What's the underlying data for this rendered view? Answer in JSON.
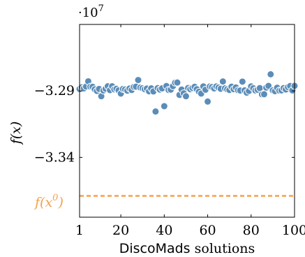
{
  "chart_data": {
    "type": "scatter",
    "title": "",
    "xlabel_sans": "DiscoMads",
    "xlabel_rest": "solutions",
    "ylabel": "f(x)",
    "y_scale_label_base": "·10",
    "y_scale_label_exp": "7",
    "xlim": [
      1,
      100
    ],
    "ylim": [
      -3.385,
      -3.24
    ],
    "xticks": [
      1,
      20,
      40,
      60,
      80,
      100
    ],
    "xtick_labels": [
      "1",
      "20",
      "40",
      "60",
      "80",
      "100"
    ],
    "yticks": [
      -3.29,
      -3.34
    ],
    "ytick_labels": [
      "−3.29",
      "−3.34"
    ],
    "grid": false,
    "series": [
      {
        "marker_color": "#5b8db8",
        "x": [
          1,
          2,
          3,
          4,
          5,
          6,
          7,
          8,
          9,
          10,
          11,
          12,
          13,
          14,
          15,
          16,
          17,
          18,
          19,
          20,
          21,
          22,
          23,
          24,
          25,
          26,
          27,
          28,
          29,
          30,
          31,
          32,
          33,
          34,
          35,
          36,
          37,
          38,
          39,
          40,
          41,
          42,
          43,
          44,
          45,
          46,
          47,
          48,
          49,
          50,
          51,
          52,
          53,
          54,
          55,
          56,
          57,
          58,
          59,
          60,
          61,
          62,
          63,
          64,
          65,
          66,
          67,
          68,
          69,
          70,
          71,
          72,
          73,
          74,
          75,
          76,
          77,
          78,
          79,
          80,
          81,
          82,
          83,
          84,
          85,
          86,
          87,
          88,
          89,
          90,
          91,
          92,
          93,
          94,
          95,
          96,
          97,
          98,
          99,
          100
        ],
        "y": [
          -3.2885,
          -3.2873,
          -3.2881,
          -3.2867,
          -3.2828,
          -3.2868,
          -3.2869,
          -3.2888,
          -3.29,
          -3.2885,
          -3.294,
          -3.2897,
          -3.2884,
          -3.2865,
          -3.2894,
          -3.2865,
          -3.2888,
          -3.2884,
          -3.2896,
          -3.292,
          -3.2885,
          -3.2889,
          -3.2898,
          -3.2882,
          -3.2893,
          -3.287,
          -3.2868,
          -3.2818,
          -3.2875,
          -3.288,
          -3.2887,
          -3.2882,
          -3.2903,
          -3.2881,
          -3.2904,
          -3.3055,
          -3.2879,
          -3.289,
          -3.2881,
          -3.3015,
          -3.2863,
          -3.2893,
          -3.289,
          -3.2864,
          -3.2838,
          -3.2837,
          -3.293,
          -3.289,
          -3.2918,
          -3.294,
          -3.2878,
          -3.2887,
          -3.2878,
          -3.2869,
          -3.2887,
          -3.2906,
          -3.292,
          -3.2866,
          -3.2891,
          -3.298,
          -3.2867,
          -3.2871,
          -3.2881,
          -3.2866,
          -3.2875,
          -3.2884,
          -3.2829,
          -3.2881,
          -3.2888,
          -3.2893,
          -3.2868,
          -3.2887,
          -3.2874,
          -3.2895,
          -3.2897,
          -3.283,
          -3.2896,
          -3.2913,
          -3.29,
          -3.2866,
          -3.288,
          -3.2897,
          -3.2891,
          -3.2879,
          -3.2926,
          -3.2925,
          -3.2875,
          -3.2862,
          -3.2775,
          -3.2896,
          -3.2902,
          -3.2876,
          -3.2898,
          -3.2896,
          -3.2879,
          -3.2889,
          -3.2871,
          -3.2863,
          -3.2896,
          -3.2862
        ]
      }
    ],
    "reference_line": {
      "label_base": "f(x",
      "label_sup": "0",
      "label_close": ")",
      "y": -3.369,
      "color": "#f5a04a",
      "style": "dashed"
    }
  }
}
